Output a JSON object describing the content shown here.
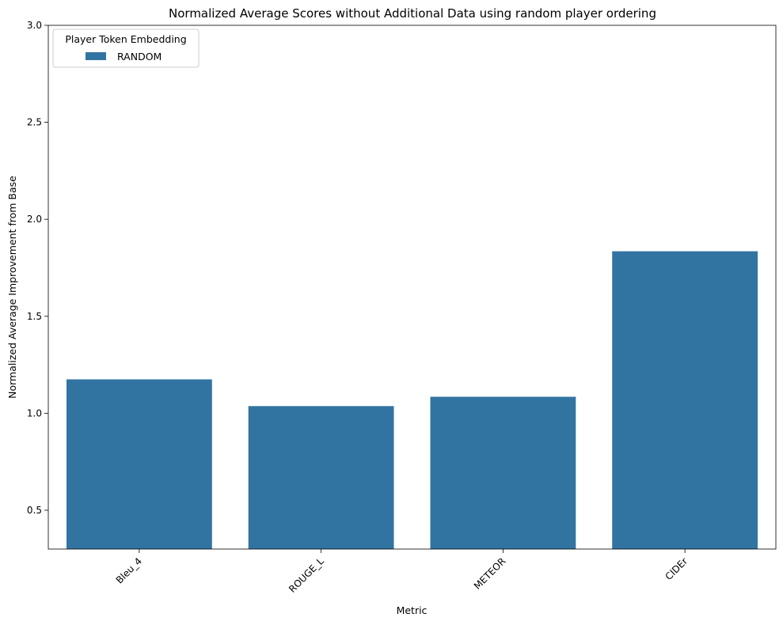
{
  "chart_data": {
    "type": "bar",
    "title": "Normalized Average Scores without Additional Data using random player ordering",
    "xlabel": "Metric",
    "ylabel": "Normalized Average Improvement from Base",
    "categories": [
      "Bleu_4",
      "ROUGE_L",
      "METEOR",
      "CIDEr"
    ],
    "series": [
      {
        "name": "RANDOM",
        "values": [
          1.175,
          1.037,
          1.085,
          1.835
        ]
      }
    ],
    "ylim": [
      0.3,
      3.0
    ],
    "yticks": [
      0.5,
      1.0,
      1.5,
      2.0,
      2.5,
      3.0
    ],
    "ytick_labels": [
      "0.5",
      "1.0",
      "1.5",
      "2.0",
      "2.5",
      "3.0"
    ],
    "legend": {
      "title": "Player Token Embedding",
      "placement": "top-left"
    },
    "grid": false,
    "colors": {
      "bar": "#3274a1"
    }
  }
}
